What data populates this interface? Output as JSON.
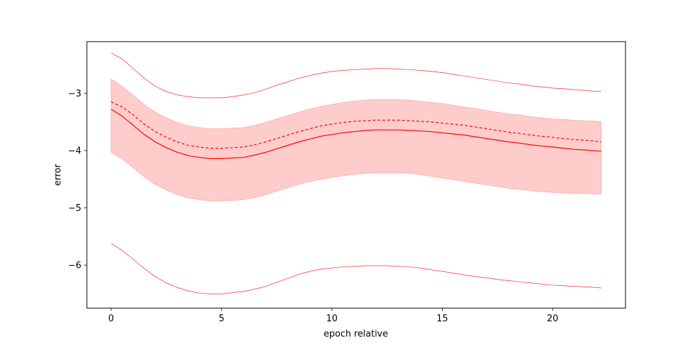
{
  "chart_data": {
    "type": "line",
    "title": "",
    "xlabel": "epoch relative",
    "ylabel": "error",
    "xlim": [
      -1.1,
      23.3
    ],
    "ylim": [
      -6.75,
      -2.1
    ],
    "xticks": [
      0,
      5,
      10,
      15,
      20
    ],
    "yticks": [
      -6,
      -5,
      -4,
      -3
    ],
    "xtick_labels": [
      "0",
      "5",
      "10",
      "15",
      "20"
    ],
    "ytick_labels": [
      "−6",
      "−5",
      "−4",
      "−3"
    ],
    "grid": false,
    "legend": "none",
    "color": "#ff0000",
    "x": [
      0,
      0.5,
      1,
      1.5,
      2,
      2.5,
      3,
      3.5,
      4,
      4.5,
      5,
      5.5,
      6,
      6.5,
      7,
      7.5,
      8,
      8.5,
      9,
      9.5,
      10,
      10.5,
      11,
      11.5,
      12,
      12.5,
      13,
      13.5,
      14,
      14.5,
      15,
      15.5,
      16,
      16.5,
      17,
      17.5,
      18,
      18.5,
      19,
      19.5,
      20,
      20.5,
      21,
      21.5,
      22,
      22.2
    ],
    "series": [
      {
        "role": "mean",
        "style": "solid",
        "values": [
          -3.28,
          -3.4,
          -3.56,
          -3.72,
          -3.85,
          -3.95,
          -4.03,
          -4.09,
          -4.12,
          -4.14,
          -4.14,
          -4.13,
          -4.12,
          -4.08,
          -4.03,
          -3.97,
          -3.91,
          -3.85,
          -3.8,
          -3.75,
          -3.72,
          -3.69,
          -3.67,
          -3.65,
          -3.64,
          -3.64,
          -3.64,
          -3.65,
          -3.66,
          -3.67,
          -3.69,
          -3.71,
          -3.73,
          -3.76,
          -3.79,
          -3.82,
          -3.85,
          -3.87,
          -3.9,
          -3.92,
          -3.94,
          -3.96,
          -3.98,
          -3.99,
          -4.01,
          -4.01
        ]
      },
      {
        "role": "median",
        "style": "dashed",
        "values": [
          -3.15,
          -3.24,
          -3.38,
          -3.54,
          -3.67,
          -3.77,
          -3.85,
          -3.91,
          -3.94,
          -3.96,
          -3.96,
          -3.95,
          -3.94,
          -3.9,
          -3.85,
          -3.79,
          -3.73,
          -3.67,
          -3.62,
          -3.57,
          -3.54,
          -3.51,
          -3.49,
          -3.48,
          -3.47,
          -3.47,
          -3.47,
          -3.48,
          -3.49,
          -3.5,
          -3.52,
          -3.54,
          -3.56,
          -3.59,
          -3.62,
          -3.65,
          -3.68,
          -3.7,
          -3.73,
          -3.75,
          -3.77,
          -3.79,
          -3.81,
          -3.82,
          -3.84,
          -3.85
        ]
      },
      {
        "role": "band_upper",
        "style": "fill",
        "values": [
          -2.75,
          -2.88,
          -3.04,
          -3.2,
          -3.33,
          -3.43,
          -3.51,
          -3.57,
          -3.6,
          -3.62,
          -3.62,
          -3.61,
          -3.6,
          -3.56,
          -3.51,
          -3.45,
          -3.39,
          -3.33,
          -3.28,
          -3.23,
          -3.2,
          -3.16,
          -3.14,
          -3.12,
          -3.11,
          -3.11,
          -3.11,
          -3.12,
          -3.14,
          -3.16,
          -3.18,
          -3.21,
          -3.24,
          -3.27,
          -3.3,
          -3.33,
          -3.36,
          -3.38,
          -3.41,
          -3.43,
          -3.45,
          -3.46,
          -3.47,
          -3.48,
          -3.49,
          -3.5
        ]
      },
      {
        "role": "band_lower",
        "style": "fill",
        "values": [
          -4.03,
          -4.15,
          -4.3,
          -4.46,
          -4.59,
          -4.69,
          -4.77,
          -4.83,
          -4.86,
          -4.88,
          -4.88,
          -4.87,
          -4.86,
          -4.82,
          -4.77,
          -4.71,
          -4.65,
          -4.59,
          -4.54,
          -4.5,
          -4.47,
          -4.44,
          -4.42,
          -4.4,
          -4.39,
          -4.39,
          -4.39,
          -4.4,
          -4.42,
          -4.45,
          -4.48,
          -4.51,
          -4.54,
          -4.57,
          -4.6,
          -4.63,
          -4.66,
          -4.68,
          -4.7,
          -4.72,
          -4.73,
          -4.74,
          -4.75,
          -4.75,
          -4.76,
          -4.76
        ]
      },
      {
        "role": "max",
        "style": "thin",
        "values": [
          -2.3,
          -2.4,
          -2.57,
          -2.74,
          -2.88,
          -2.97,
          -3.03,
          -3.06,
          -3.08,
          -3.08,
          -3.08,
          -3.06,
          -3.03,
          -2.99,
          -2.93,
          -2.86,
          -2.8,
          -2.74,
          -2.69,
          -2.65,
          -2.62,
          -2.6,
          -2.59,
          -2.58,
          -2.57,
          -2.57,
          -2.58,
          -2.59,
          -2.6,
          -2.62,
          -2.64,
          -2.67,
          -2.7,
          -2.73,
          -2.76,
          -2.79,
          -2.82,
          -2.84,
          -2.87,
          -2.89,
          -2.91,
          -2.92,
          -2.94,
          -2.95,
          -2.97,
          -2.97
        ]
      },
      {
        "role": "min",
        "style": "thin",
        "values": [
          -5.62,
          -5.74,
          -5.9,
          -6.06,
          -6.2,
          -6.31,
          -6.39,
          -6.45,
          -6.49,
          -6.5,
          -6.5,
          -6.48,
          -6.46,
          -6.42,
          -6.37,
          -6.3,
          -6.23,
          -6.16,
          -6.11,
          -6.07,
          -6.05,
          -6.03,
          -6.02,
          -6.01,
          -6.01,
          -6.01,
          -6.02,
          -6.03,
          -6.05,
          -6.08,
          -6.11,
          -6.14,
          -6.17,
          -6.2,
          -6.22,
          -6.25,
          -6.27,
          -6.29,
          -6.31,
          -6.33,
          -6.35,
          -6.36,
          -6.37,
          -6.38,
          -6.39,
          -6.4
        ]
      }
    ]
  }
}
